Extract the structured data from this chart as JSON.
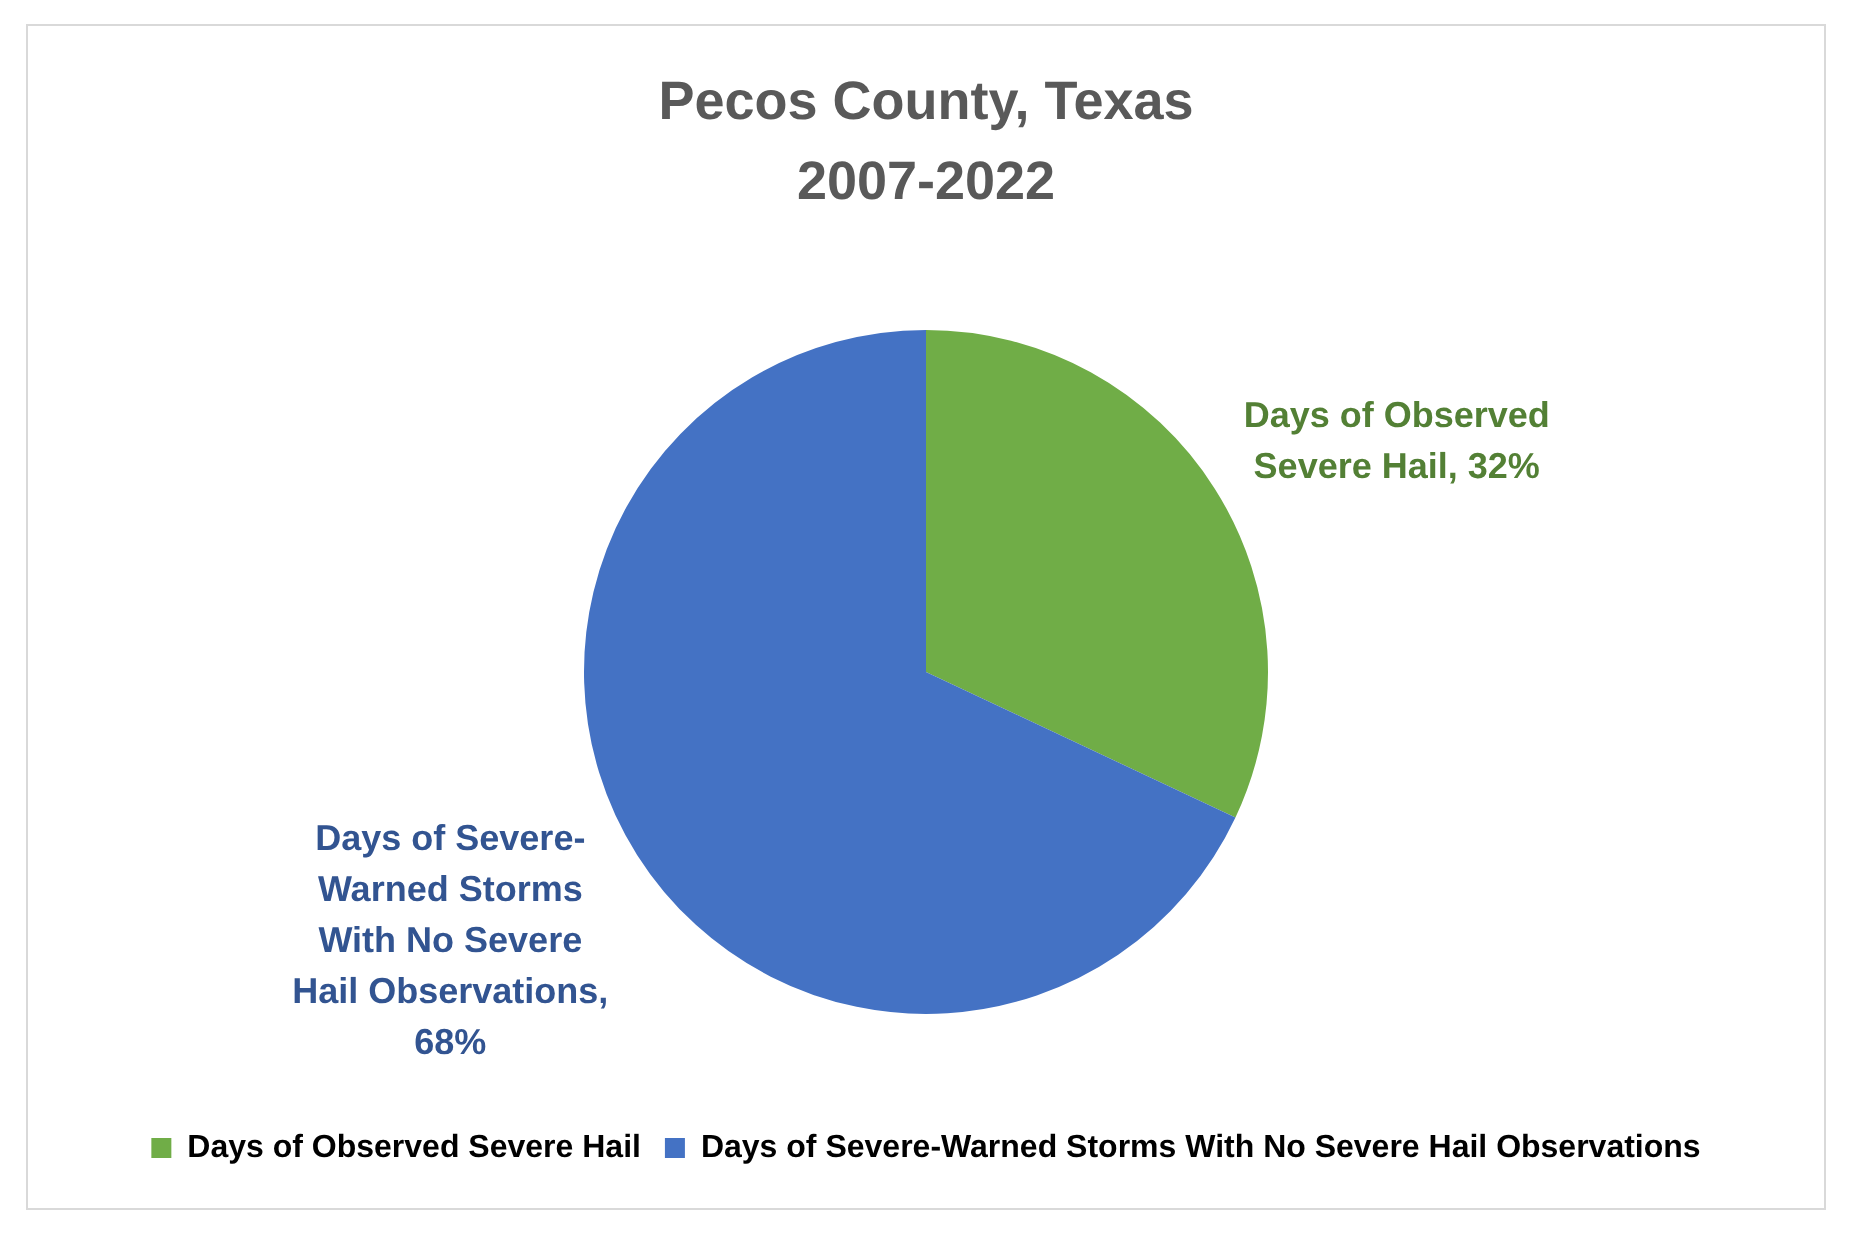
{
  "chart_data": {
    "type": "pie",
    "title": "Pecos County, Texas\n2007-2022",
    "categories": [
      "Days of Observed Severe Hail",
      "Days of Severe-Warned Storms With No Severe Hail Observations"
    ],
    "values": [
      32,
      68
    ],
    "colors": [
      "#70ad47",
      "#4472c4"
    ],
    "value_labels": [
      "Days of Observed Severe Hail, 32%",
      "Days of Severe-Warned Storms With No Severe Hail Observations, 68%"
    ],
    "legend": "bottom"
  }
}
